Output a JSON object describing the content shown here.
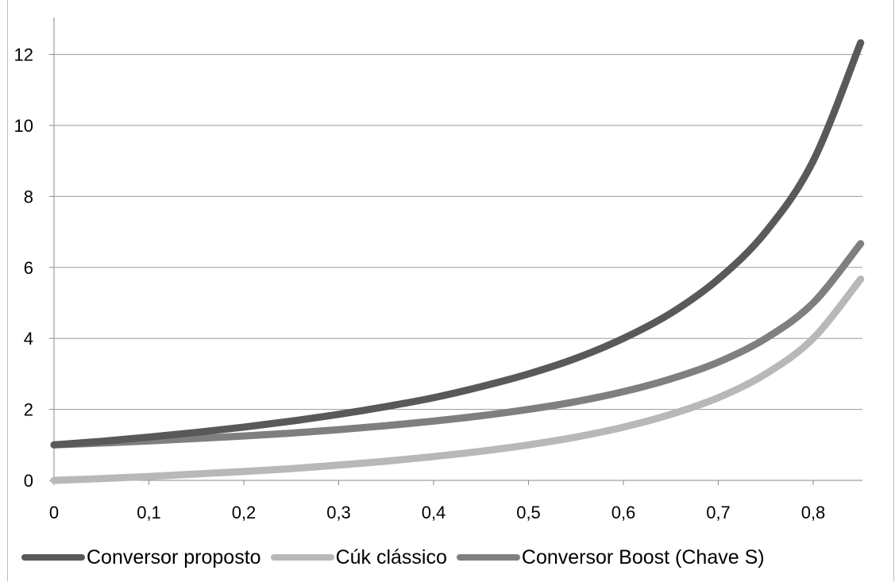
{
  "chart_data": {
    "type": "line",
    "title": "",
    "xlabel": "",
    "ylabel": "",
    "xlim": [
      0,
      0.85
    ],
    "ylim": [
      0,
      13
    ],
    "x_ticks": [
      "0",
      "0,1",
      "0,2",
      "0,3",
      "0,4",
      "0,5",
      "0,6",
      "0,7",
      "0,8"
    ],
    "y_ticks": [
      "0",
      "2",
      "4",
      "6",
      "8",
      "10",
      "12"
    ],
    "grid": "horizontal",
    "legend_position": "bottom",
    "series": [
      {
        "name": "Conversor proposto",
        "color": "#595959",
        "x": [
          0,
          0.05,
          0.1,
          0.15,
          0.2,
          0.25,
          0.3,
          0.35,
          0.4,
          0.45,
          0.5,
          0.55,
          0.6,
          0.65,
          0.7,
          0.75,
          0.8,
          0.85
        ],
        "y": [
          1.0,
          1.1,
          1.22,
          1.35,
          1.5,
          1.67,
          1.86,
          2.08,
          2.33,
          2.64,
          3.0,
          3.44,
          4.0,
          4.71,
          5.67,
          7.0,
          9.0,
          12.33
        ]
      },
      {
        "name": "Cúk clássico",
        "color": "#b8b8b8",
        "x": [
          0,
          0.05,
          0.1,
          0.15,
          0.2,
          0.25,
          0.3,
          0.35,
          0.4,
          0.45,
          0.5,
          0.55,
          0.6,
          0.65,
          0.7,
          0.75,
          0.8,
          0.85
        ],
        "y": [
          0.0,
          0.05,
          0.11,
          0.18,
          0.25,
          0.33,
          0.43,
          0.54,
          0.67,
          0.82,
          1.0,
          1.22,
          1.5,
          1.86,
          2.33,
          3.0,
          4.0,
          5.67
        ]
      },
      {
        "name": "Conversor Boost (Chave S)",
        "color": "#7f7f7f",
        "x": [
          0,
          0.05,
          0.1,
          0.15,
          0.2,
          0.25,
          0.3,
          0.35,
          0.4,
          0.45,
          0.5,
          0.55,
          0.6,
          0.65,
          0.7,
          0.75,
          0.8,
          0.85
        ],
        "y": [
          1.0,
          1.05,
          1.11,
          1.18,
          1.25,
          1.33,
          1.43,
          1.54,
          1.67,
          1.82,
          2.0,
          2.22,
          2.5,
          2.86,
          3.33,
          4.0,
          5.0,
          6.67
        ]
      }
    ]
  }
}
